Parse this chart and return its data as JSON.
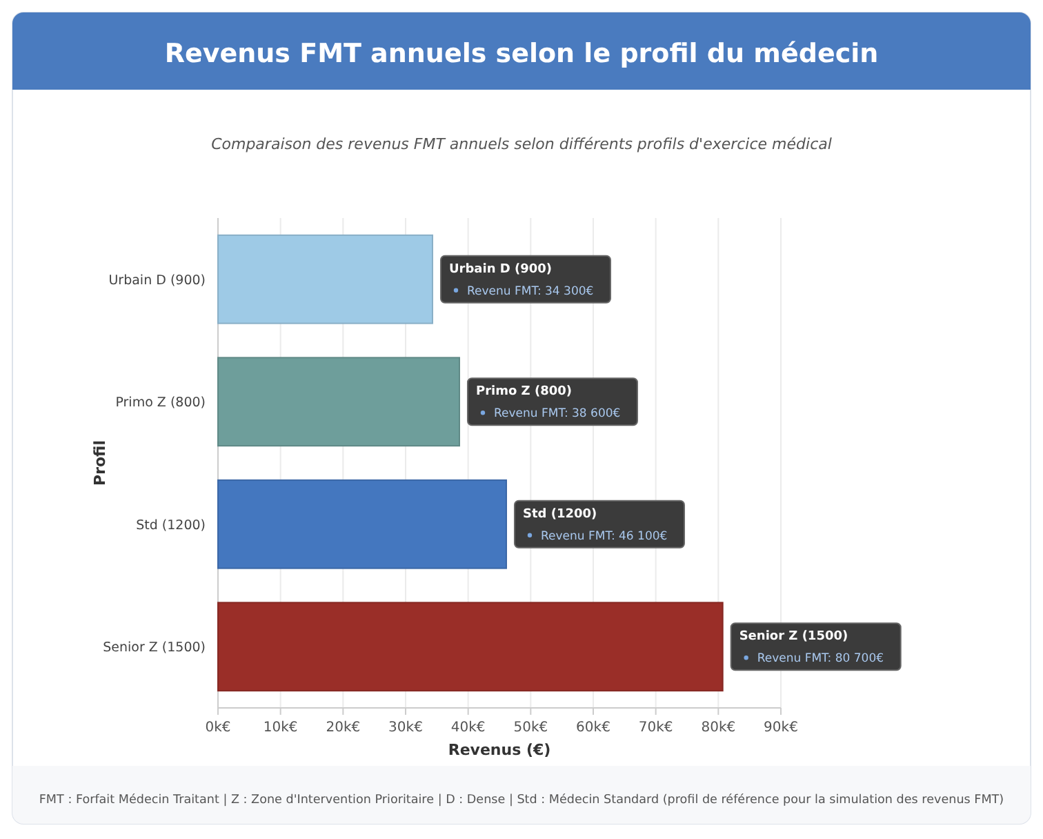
{
  "chart_data": {
    "type": "bar",
    "orientation": "horizontal",
    "title": "Revenus FMT annuels selon le profil du médecin",
    "subtitle": "Comparaison des revenus FMT annuels selon différents profils d'exercice médical",
    "categories": [
      "Urbain D (900)",
      "Primo Z (800)",
      "Std (1200)",
      "Senior Z (1500)"
    ],
    "values": [
      34300,
      38600,
      46100,
      80700
    ],
    "colors": [
      "#9ecae6",
      "#6e9e9b",
      "#4477bf",
      "#9a2e28"
    ],
    "value_labels": [
      "Revenu FMT: 34 300€",
      "Revenu FMT: 38 600€",
      "Revenu FMT: 46 100€",
      "Revenu FMT: 80 700€"
    ],
    "xlim": [
      0,
      90000
    ],
    "xticks": [
      {
        "value": 0,
        "label": "0k€"
      },
      {
        "value": 10000,
        "label": "10k€"
      },
      {
        "value": 20000,
        "label": "20k€"
      },
      {
        "value": 30000,
        "label": "30k€"
      },
      {
        "value": 40000,
        "label": "40k€"
      },
      {
        "value": 50000,
        "label": "50k€"
      },
      {
        "value": 60000,
        "label": "60k€"
      },
      {
        "value": 70000,
        "label": "70k€"
      },
      {
        "value": 80000,
        "label": "80k€"
      },
      {
        "value": 90000,
        "label": "90k€"
      }
    ],
    "xlabel": "Revenus (€)",
    "ylabel": "Profil",
    "grid": "x",
    "annotations": [
      "FMT : Forfait Médecin Traitant | Z : Zone d'Intervention Prioritaire | D : Dense | Std : Médecin Standard (profil de référence pour la simulation des revenus FMT)"
    ]
  }
}
